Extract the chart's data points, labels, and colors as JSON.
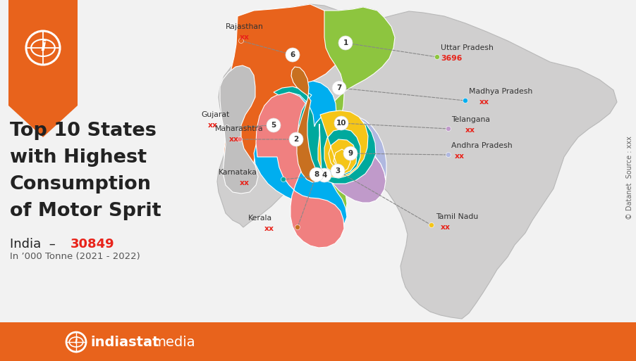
{
  "bg_color": "#f2f2f2",
  "orange_color": "#e8631c",
  "red_color": "#e8231a",
  "dark_color": "#222222",
  "gray_color": "#888888",
  "title_lines": [
    "Top 10 States",
    "with Highest",
    "Consumption",
    "of Motor Sprit"
  ],
  "india_label": "India  –",
  "india_total": "30849",
  "unit_label": "In ’000 Tonne (2021 - 2022)",
  "watermark": "indiastatmedia.com",
  "footer_text": "indiastat",
  "footer_text2": "media",
  "copyright": "© Datanet",
  "source": "Source : xxx",
  "state_colors": {
    "RJ": "#e8631c",
    "UP": "#8dc53f",
    "MP": "#00aeef",
    "GJ": "#c0bfbf",
    "MH": "#f08080",
    "TG": "#c09aca",
    "AP": "#b0b8e0",
    "KA": "#00a99d",
    "TN": "#f5c518",
    "KL": "#c87020"
  },
  "gray_states_color": "#d0cfcf",
  "white_border": "#ffffff",
  "rank_circle_color": "#ffffff",
  "rank_text_color": "#333333",
  "label_text_color": "#444444",
  "dashed_line_color": "#888888"
}
